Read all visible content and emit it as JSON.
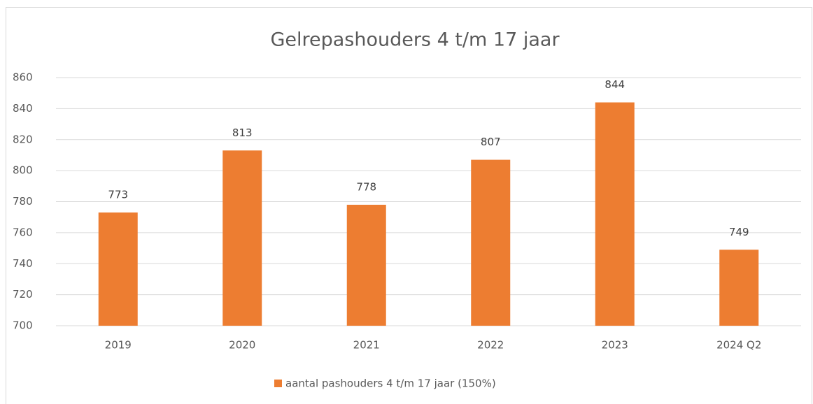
{
  "chart_data": {
    "type": "bar",
    "title": "Gelrepashouders 4 t/m 17 jaar",
    "categories": [
      "2019",
      "2020",
      "2021",
      "2022",
      "2023",
      "2024 Q2"
    ],
    "series": [
      {
        "name": "aantal pashouders 4 t/m 17 jaar (150%)",
        "color": "#ed7d31",
        "values": [
          773,
          813,
          778,
          807,
          844,
          749
        ]
      }
    ],
    "ylim": [
      700,
      860
    ],
    "yticks": [
      700,
      720,
      740,
      760,
      780,
      800,
      820,
      840,
      860
    ],
    "grid": true,
    "legend": "bottom"
  }
}
